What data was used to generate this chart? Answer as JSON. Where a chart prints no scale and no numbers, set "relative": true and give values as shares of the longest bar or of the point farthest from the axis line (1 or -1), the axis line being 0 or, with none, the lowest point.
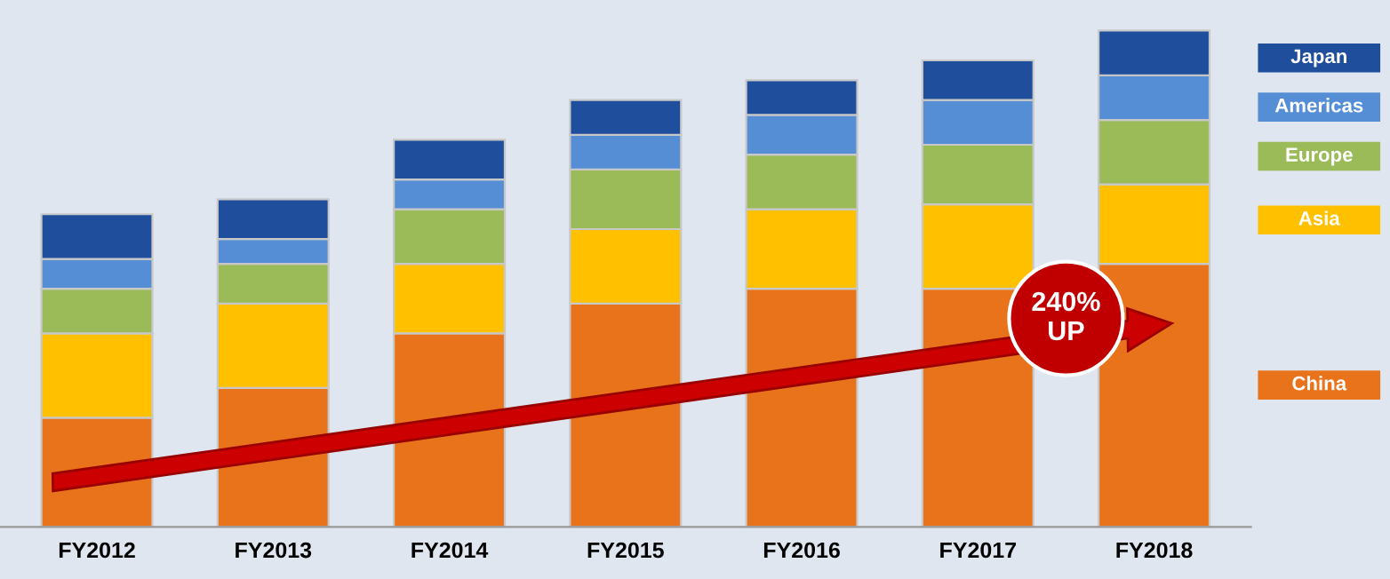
{
  "chart_data": {
    "type": "bar",
    "stacked": true,
    "relative": true,
    "legend": "right",
    "annotations": [
      "240%\nUP"
    ],
    "categories": [
      "FY2012",
      "FY2013",
      "FY2014",
      "FY2015",
      "FY2016",
      "FY2017",
      "FY2018"
    ],
    "series": [
      {
        "name": "China",
        "color": "#e8731a",
        "values": [
          0.22,
          0.28,
          0.39,
          0.45,
          0.48,
          0.48,
          0.53
        ]
      },
      {
        "name": "Asia",
        "color": "#ffc000",
        "values": [
          0.17,
          0.17,
          0.14,
          0.15,
          0.16,
          0.17,
          0.16
        ]
      },
      {
        "name": "Europe",
        "color": "#9bbb59",
        "values": [
          0.09,
          0.08,
          0.11,
          0.12,
          0.11,
          0.12,
          0.13
        ]
      },
      {
        "name": "Americas",
        "color": "#558ed5",
        "values": [
          0.06,
          0.05,
          0.06,
          0.07,
          0.08,
          0.09,
          0.09
        ]
      },
      {
        "name": "Japan",
        "color": "#1f4e9c",
        "values": [
          0.09,
          0.08,
          0.08,
          0.07,
          0.07,
          0.08,
          0.09
        ]
      }
    ]
  }
}
